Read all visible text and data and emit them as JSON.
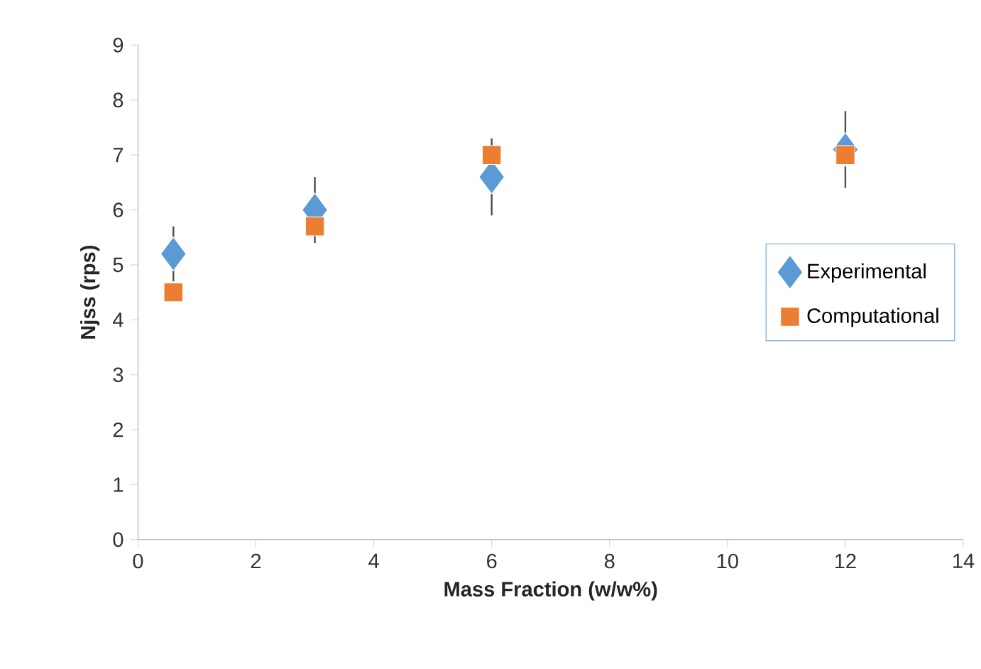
{
  "chart_data": {
    "type": "scatter",
    "xlabel": "Mass Fraction (w/w%)",
    "ylabel": "Njss (rps)",
    "x": [
      0.6,
      3,
      6,
      12
    ],
    "series": [
      {
        "name": "Experimental",
        "color": "#5b9bd5",
        "marker": "diamond",
        "values": [
          5.2,
          6.0,
          6.6,
          7.1
        ],
        "errors": [
          0.5,
          0.6,
          0.7,
          0.7
        ]
      },
      {
        "name": "Computational",
        "color": "#ed7d31",
        "marker": "square",
        "values": [
          4.5,
          5.7,
          7.0,
          7.0
        ]
      }
    ],
    "xlim": [
      0,
      14
    ],
    "xticks": [
      0,
      2,
      4,
      6,
      8,
      10,
      12,
      14
    ],
    "ylim": [
      0,
      9
    ],
    "yticks": [
      0,
      1,
      2,
      3,
      4,
      5,
      6,
      7,
      8,
      9
    ],
    "grid": false,
    "legend": "right"
  }
}
